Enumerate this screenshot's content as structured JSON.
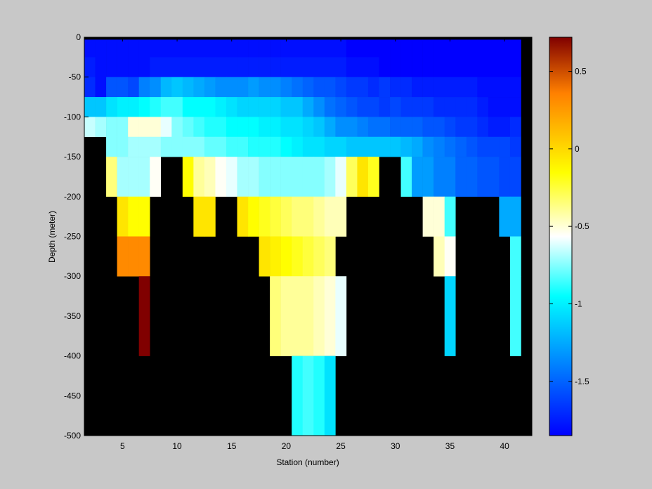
{
  "chart_data": [
    {
      "type": "heatmap",
      "title": "",
      "xlabel": "Station (number)",
      "ylabel": "Depth (meter)",
      "xlim": [
        1.5,
        42.5
      ],
      "ylim": [
        -500,
        0
      ],
      "xticks": [
        5,
        10,
        15,
        20,
        25,
        30,
        35,
        40
      ],
      "yticks": [
        0,
        -50,
        -100,
        -150,
        -200,
        -250,
        -300,
        -350,
        -400,
        -450,
        -500
      ],
      "no_data_color": "#000000",
      "background_color": "#c8c8c8",
      "colormap": "jet",
      "color_range": [
        -1.85,
        0.72
      ],
      "colorbar_ticks": [
        0.5,
        0,
        -0.5,
        -1,
        -1.5
      ],
      "layer_depth_step": 25,
      "layers": [
        {
          "top": -3,
          "bottom": -25,
          "values": [
            -1.8,
            -1.8,
            -1.8,
            -1.8,
            -1.8,
            -1.8,
            -1.8,
            -1.8,
            -1.8,
            -1.8,
            -1.8,
            -1.8,
            -1.8,
            -1.8,
            -1.8,
            -1.8,
            -1.8,
            -1.8,
            -1.8,
            -1.8,
            -1.8,
            -1.8,
            -1.8,
            -1.8,
            -1.85,
            -1.85,
            -1.85,
            -1.85,
            -1.85,
            -1.85,
            -1.85,
            -1.85,
            -1.85,
            -1.85,
            -1.85,
            -1.85,
            -1.85,
            -1.85,
            -1.85,
            -1.85
          ]
        },
        {
          "top": -25,
          "bottom": -50,
          "values": [
            -1.75,
            -1.8,
            -1.8,
            -1.8,
            -1.8,
            -1.8,
            -1.75,
            -1.75,
            -1.75,
            -1.75,
            -1.75,
            -1.75,
            -1.75,
            -1.75,
            -1.75,
            -1.75,
            -1.75,
            -1.75,
            -1.75,
            -1.75,
            -1.75,
            -1.75,
            -1.75,
            -1.75,
            -1.8,
            -1.8,
            -1.8,
            -1.85,
            -1.85,
            -1.85,
            -1.85,
            -1.85,
            -1.85,
            -1.85,
            -1.85,
            -1.85,
            -1.85,
            -1.85,
            -1.85,
            -1.85
          ]
        },
        {
          "top": -50,
          "bottom": -75,
          "values": [
            -1.7,
            -1.8,
            -1.55,
            -1.55,
            -1.6,
            -1.4,
            -1.35,
            -1.2,
            -1.15,
            -1.2,
            -1.25,
            -1.3,
            -1.35,
            -1.35,
            -1.35,
            -1.3,
            -1.35,
            -1.35,
            -1.4,
            -1.45,
            -1.5,
            -1.55,
            -1.55,
            -1.6,
            -1.65,
            -1.65,
            -1.7,
            -1.65,
            -1.7,
            -1.7,
            -1.75,
            -1.75,
            -1.75,
            -1.75,
            -1.75,
            -1.75,
            -1.8,
            -1.8,
            -1.8,
            -1.8
          ]
        },
        {
          "top": -75,
          "bottom": -100,
          "values": [
            -1.15,
            -1.15,
            -1.05,
            -1.0,
            -1.0,
            -0.95,
            -0.9,
            -0.85,
            -0.85,
            -0.95,
            -0.95,
            -0.95,
            -1.0,
            -1.05,
            -1.1,
            -1.1,
            -1.1,
            -1.1,
            -1.15,
            -1.15,
            -1.25,
            -1.35,
            -1.45,
            -1.5,
            -1.55,
            -1.6,
            -1.6,
            -1.65,
            -1.6,
            -1.65,
            -1.65,
            -1.65,
            -1.7,
            -1.7,
            -1.7,
            -1.7,
            -1.75,
            -1.8,
            -1.8,
            -1.8
          ]
        },
        {
          "top": -100,
          "bottom": -125,
          "values": [
            -0.65,
            -0.7,
            -0.75,
            -0.75,
            -0.5,
            -0.5,
            -0.5,
            -0.6,
            -0.75,
            -0.8,
            -0.85,
            -0.9,
            -0.9,
            -0.95,
            -0.95,
            -0.95,
            -1.0,
            -1.0,
            -1.05,
            -1.05,
            -1.1,
            -1.15,
            -1.25,
            -1.35,
            -1.35,
            -1.4,
            -1.45,
            -1.45,
            -1.5,
            -1.5,
            -1.5,
            -1.55,
            -1.55,
            -1.6,
            -1.65,
            -1.65,
            -1.7,
            -1.75,
            -1.75,
            -1.7
          ]
        },
        {
          "top": -125,
          "bottom": -150,
          "values": [
            null,
            null,
            -0.75,
            -0.75,
            -0.7,
            -0.7,
            -0.7,
            -0.75,
            -0.75,
            -0.75,
            -0.75,
            -0.8,
            -0.8,
            -0.85,
            -0.85,
            -0.9,
            -0.9,
            -0.9,
            -0.95,
            -1.0,
            -1.05,
            -1.05,
            -1.1,
            -1.1,
            -1.15,
            -1.15,
            -1.15,
            -1.15,
            -1.15,
            -1.2,
            -1.25,
            -1.35,
            -1.4,
            -1.45,
            -1.5,
            -1.55,
            -1.6,
            -1.6,
            -1.6,
            -1.65
          ]
        },
        {
          "top": -150,
          "bottom": -200,
          "values": [
            null,
            null,
            -0.35,
            -0.7,
            -0.7,
            -0.7,
            -0.55,
            null,
            null,
            -0.15,
            -0.4,
            -0.45,
            -0.55,
            -0.6,
            -0.7,
            -0.7,
            -0.75,
            -0.75,
            -0.75,
            -0.75,
            -0.75,
            -0.75,
            -0.7,
            -0.6,
            -0.3,
            -0.05,
            -0.2,
            null,
            null,
            -0.85,
            -1.3,
            -1.3,
            -1.4,
            -1.4,
            -1.5,
            -1.5,
            -1.55,
            -1.55,
            -1.6,
            -1.6
          ]
        },
        {
          "top": -200,
          "bottom": -250,
          "values": [
            null,
            null,
            null,
            -0.05,
            -0.15,
            -0.15,
            null,
            null,
            null,
            null,
            -0.05,
            -0.05,
            null,
            null,
            -0.05,
            -0.15,
            -0.2,
            -0.25,
            -0.3,
            -0.35,
            -0.35,
            -0.4,
            -0.45,
            -0.45,
            null,
            null,
            null,
            null,
            null,
            null,
            null,
            -0.5,
            -0.5,
            -0.85,
            null,
            null,
            null,
            null,
            -1.25,
            -1.25
          ]
        },
        {
          "top": -250,
          "bottom": -300,
          "values": [
            null,
            null,
            null,
            0.32,
            0.32,
            0.32,
            null,
            null,
            null,
            null,
            null,
            null,
            null,
            null,
            null,
            null,
            -0.05,
            -0.1,
            -0.15,
            -0.2,
            -0.25,
            -0.3,
            -0.35,
            null,
            null,
            null,
            null,
            null,
            null,
            null,
            null,
            null,
            -0.45,
            -0.55,
            null,
            null,
            null,
            null,
            null,
            -0.85
          ]
        },
        {
          "top": -300,
          "bottom": -400,
          "values": [
            null,
            null,
            null,
            null,
            null,
            0.72,
            null,
            null,
            null,
            null,
            null,
            null,
            null,
            null,
            null,
            null,
            null,
            -0.35,
            -0.4,
            -0.4,
            -0.4,
            -0.45,
            -0.5,
            -0.6,
            null,
            null,
            null,
            null,
            null,
            null,
            null,
            null,
            null,
            -1.1,
            null,
            null,
            null,
            null,
            null,
            -0.85
          ]
        },
        {
          "top": -400,
          "bottom": -500,
          "values": [
            null,
            null,
            null,
            null,
            null,
            null,
            null,
            null,
            null,
            null,
            null,
            null,
            null,
            null,
            null,
            null,
            null,
            null,
            null,
            -0.9,
            -0.85,
            -0.9,
            -1.05,
            null,
            null,
            null,
            null,
            null,
            null,
            null,
            null,
            null,
            null,
            null,
            null,
            null,
            null,
            null,
            null,
            null
          ]
        }
      ]
    }
  ]
}
